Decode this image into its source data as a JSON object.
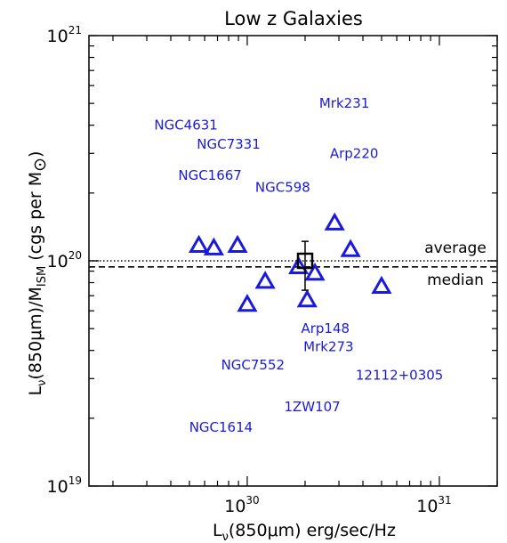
{
  "chart_data": {
    "type": "scatter",
    "title": "Low z Galaxies",
    "xlabel": {
      "main": "L",
      "sub": "ν",
      "rest": "(850μm) erg/sec/Hz"
    },
    "ylabel": {
      "main": "L",
      "sub": "ν",
      "mid": "(850μm)/M",
      "sub2": "ISM",
      "rest": " (cgs per M",
      "sym": "⊙",
      "close": ")"
    },
    "x_scale": "log",
    "y_scale": "log",
    "xlim": [
      1.5e+29,
      2e+31
    ],
    "ylim": [
      1e+19,
      1e+21
    ],
    "x_ticks": [
      {
        "base": "10",
        "exp": "30",
        "value": 1e+30
      },
      {
        "base": "10",
        "exp": "31",
        "value": 1e+31
      }
    ],
    "y_ticks": [
      {
        "base": "10",
        "exp": "19",
        "value": 1e+19
      },
      {
        "base": "10",
        "exp": "20",
        "value": 1e+20
      },
      {
        "base": "10",
        "exp": "21",
        "value": 1e+21
      }
    ],
    "points": [
      {
        "x": 5.6e+29,
        "y": 1.17e+20
      },
      {
        "x": 6.7e+29,
        "y": 1.14e+20
      },
      {
        "x": 8.9e+29,
        "y": 1.17e+20
      },
      {
        "x": 1e+30,
        "y": 6.4e+19
      },
      {
        "x": 1.24e+30,
        "y": 8.1e+19
      },
      {
        "x": 1.85e+30,
        "y": 9.4e+19
      },
      {
        "x": 2.05e+30,
        "y": 6.7e+19
      },
      {
        "x": 2.25e+30,
        "y": 8.8e+19
      },
      {
        "x": 2.85e+30,
        "y": 1.47e+20
      },
      {
        "x": 3.45e+30,
        "y": 1.12e+20
      },
      {
        "x": 5e+30,
        "y": 7.7e+19
      }
    ],
    "summary_point": {
      "x": 2e+30,
      "y": 1e+20,
      "y_err_low": 7.4e+19,
      "y_err_high": 1.22e+20
    },
    "reference_lines": [
      {
        "label": "average",
        "y": 1e+20,
        "style": "dotted"
      },
      {
        "label": "median",
        "y": 9.4e+19,
        "style": "dashed"
      }
    ],
    "annotations": [
      {
        "text": "Mrk231",
        "x": 3.2e+30,
        "y": 5e+20
      },
      {
        "text": "NGC4631",
        "x": 4.8e+29,
        "y": 4e+20
      },
      {
        "text": "NGC7331",
        "x": 8e+29,
        "y": 3.3e+20
      },
      {
        "text": "Arp220",
        "x": 3.6e+30,
        "y": 3e+20
      },
      {
        "text": "NGC1667",
        "x": 6.4e+29,
        "y": 2.4e+20
      },
      {
        "text": "NGC598",
        "x": 1.53e+30,
        "y": 2.12e+20
      },
      {
        "text": "Arp148",
        "x": 2.55e+30,
        "y": 5e+19
      },
      {
        "text": "Mrk273",
        "x": 2.65e+30,
        "y": 4.15e+19
      },
      {
        "text": "NGC7552",
        "x": 1.07e+30,
        "y": 3.45e+19
      },
      {
        "text": "12112+0305",
        "x": 6.2e+30,
        "y": 3.1e+19
      },
      {
        "text": "1ZW107",
        "x": 2.18e+30,
        "y": 2.25e+19
      },
      {
        "text": "NGC1614",
        "x": 7.3e+29,
        "y": 1.82e+19
      }
    ],
    "colors": {
      "points": "#1a1adc",
      "labels": "#1a1adc",
      "axes": "#000000"
    },
    "grid": false,
    "legend": "none"
  }
}
